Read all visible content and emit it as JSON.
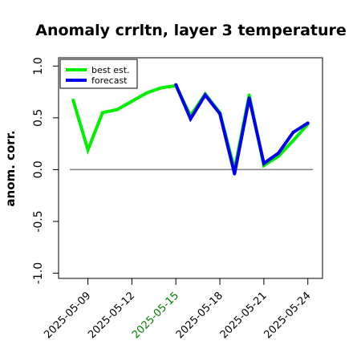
{
  "chart_data": {
    "type": "line",
    "title": "Anomaly crrltn, layer 3 temperature",
    "ylabel": "anom. corr.",
    "xlabel": "",
    "ylim": [
      -1.05,
      1.08
    ],
    "yticks": [
      -1.0,
      -0.5,
      0.0,
      0.5,
      1.0
    ],
    "ytick_labels": [
      "-1.0",
      "-0.5",
      "0.0",
      "0.5",
      "1.0"
    ],
    "x": [
      "2025-05-08",
      "2025-05-09",
      "2025-05-10",
      "2025-05-11",
      "2025-05-12",
      "2025-05-13",
      "2025-05-14",
      "2025-05-15",
      "2025-05-16",
      "2025-05-17",
      "2025-05-18",
      "2025-05-19",
      "2025-05-20",
      "2025-05-21",
      "2025-05-22",
      "2025-05-23",
      "2025-05-24"
    ],
    "xlim": [
      "2025-05-07",
      "2025-05-25"
    ],
    "xticks": [
      "2025-05-09",
      "2025-05-12",
      "2025-05-15",
      "2025-05-18",
      "2025-05-21",
      "2025-05-24"
    ],
    "xtick_colors": [
      "#000000",
      "#000000",
      "#008000",
      "#000000",
      "#000000",
      "#000000"
    ],
    "zero_line": 0.0,
    "grid": false,
    "legend_position": "top-left",
    "series": [
      {
        "name": "best est.",
        "color": "#00ee00",
        "values": [
          0.67,
          0.19,
          0.55,
          0.58,
          0.66,
          0.74,
          0.79,
          0.81,
          0.52,
          0.73,
          0.55,
          0.0,
          0.72,
          0.04,
          0.13,
          0.28,
          0.44
        ]
      },
      {
        "name": "forecast",
        "color": "#0000ee",
        "values": [
          null,
          null,
          null,
          null,
          null,
          null,
          null,
          0.82,
          0.49,
          0.72,
          0.54,
          -0.04,
          0.69,
          0.06,
          0.16,
          0.36,
          0.45
        ]
      }
    ]
  }
}
